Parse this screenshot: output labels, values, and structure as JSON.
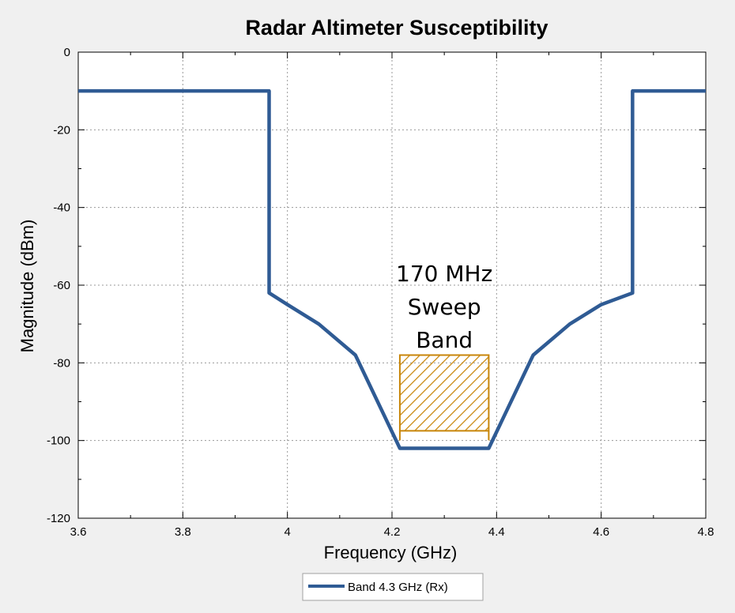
{
  "chart_data": {
    "type": "line",
    "title": "Radar Altimeter Susceptibility",
    "xlabel": "Frequency (GHz)",
    "ylabel": "Magnitude (dBm)",
    "xlim": [
      3.6,
      4.8
    ],
    "ylim": [
      -120,
      0
    ],
    "xticks": [
      3.6,
      3.8,
      4,
      4.2,
      4.4,
      4.6,
      4.8
    ],
    "xtick_labels": [
      "3.6",
      "3.8",
      "4",
      "4.2",
      "4.4",
      "4.6",
      "4.8"
    ],
    "yticks": [
      0,
      -20,
      -40,
      -60,
      -80,
      -100,
      -120
    ],
    "ytick_labels": [
      "0",
      "-20",
      "-40",
      "-60",
      "-80",
      "-100",
      "-120"
    ],
    "grid": true,
    "legend_position": "bottom-center",
    "series": [
      {
        "name": "Band 4.3 GHz (Rx)",
        "color": "#2f5b94",
        "x": [
          3.6,
          3.965,
          3.965,
          4.0,
          4.06,
          4.13,
          4.215,
          4.385,
          4.47,
          4.54,
          4.6,
          4.66,
          4.66,
          4.8
        ],
        "y": [
          -10,
          -10,
          -62,
          -65,
          -70,
          -78,
          -102,
          -102,
          -78,
          -70,
          -65,
          -62,
          -10,
          -10
        ]
      }
    ],
    "annotations": [
      {
        "type": "hatched_region",
        "x0": 4.215,
        "x1": 4.385,
        "y0": -97.5,
        "y1": -78,
        "color": "#c8860a",
        "label_lines": [
          "170 MHz",
          "Sweep",
          "Band"
        ]
      }
    ]
  }
}
